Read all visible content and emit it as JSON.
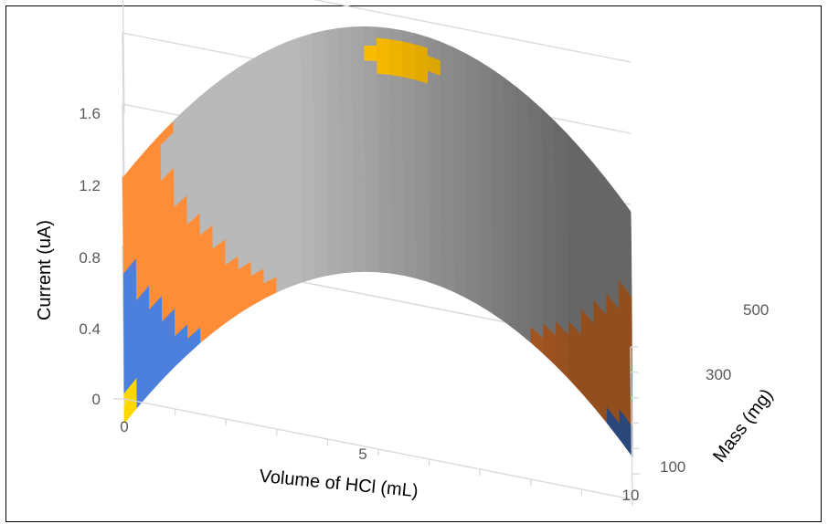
{
  "chart_data": {
    "type": "surface",
    "x_axis": {
      "label": "Volume of HCl (mL)",
      "range": [
        0,
        10
      ],
      "tick_labels": [
        "0",
        "5",
        "10"
      ],
      "tick_values": [
        0,
        5,
        10
      ]
    },
    "y_axis": {
      "label": "Mass (mg)",
      "range": [
        0,
        600
      ],
      "tick_labels": [
        "100",
        "300",
        "500"
      ],
      "tick_values": [
        100,
        300,
        500
      ]
    },
    "z_axis": {
      "label": "Current  (uA)",
      "range": [
        0,
        1.6
      ],
      "tick_labels": [
        "0",
        "0.4",
        "0.8",
        "1.2",
        "1.6"
      ],
      "tick_values": [
        0,
        0.4,
        0.8,
        1.2,
        1.6
      ]
    },
    "surface": {
      "description_model": "quadratic peak",
      "peak_volume": 5.5,
      "peak_mass": 430,
      "peak_current": 1.62,
      "corner_values": [
        {
          "volume": 0,
          "mass": 0,
          "current": 0.3
        },
        {
          "volume": 10,
          "mass": 0,
          "current": 0.4
        },
        {
          "volume": 0,
          "mass": 600,
          "current": 0.85
        },
        {
          "volume": 10,
          "mass": 600,
          "current": 1.1
        }
      ]
    },
    "bands": [
      {
        "range": [
          0,
          0.4
        ],
        "color": "#4472c4"
      },
      {
        "range": [
          0.4,
          0.8
        ],
        "color": "#ed7d31"
      },
      {
        "range": [
          0.8,
          1.2
        ],
        "color": "#a5a5a5"
      },
      {
        "range": [
          1.2,
          1.6
        ],
        "color": "#a5a5a5"
      },
      {
        "range": [
          1.6,
          2.0
        ],
        "color": "#ffc000"
      }
    ],
    "grid": true,
    "legend": "none"
  }
}
